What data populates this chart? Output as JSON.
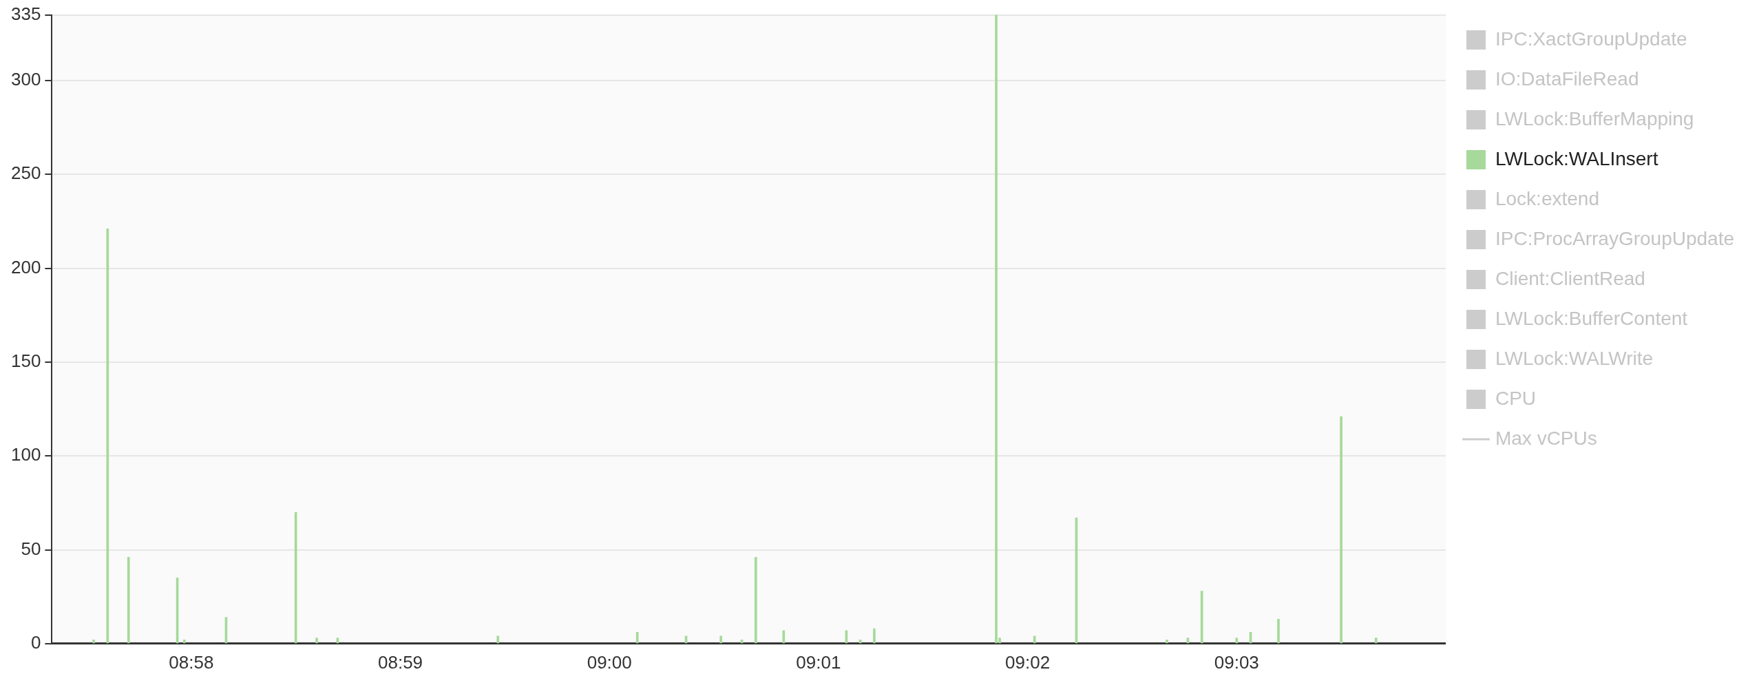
{
  "chart_data": {
    "type": "bar",
    "x": [
      8.958889,
      8.96,
      8.961667,
      8.965556,
      8.966111,
      8.969444,
      8.975,
      8.976667,
      8.978333,
      8.991111,
      9.002222,
      9.006111,
      9.008889,
      9.010556,
      9.011667,
      9.013889,
      9.018889,
      9.02,
      9.021111,
      9.030833,
      9.031111,
      9.033889,
      9.037222,
      9.044444,
      9.046111,
      9.047222,
      9.05,
      9.051111,
      9.053333,
      9.058333,
      9.061111
    ],
    "series": [
      {
        "name": "IPC:XactGroupUpdate",
        "color": "#cccccc",
        "values": [
          null,
          null,
          null,
          null,
          null,
          null,
          null,
          null,
          null,
          null,
          null,
          null,
          null,
          null,
          null,
          null,
          null,
          null,
          null,
          null,
          null,
          null,
          null,
          null,
          null,
          null,
          null,
          null,
          null,
          null,
          null
        ]
      },
      {
        "name": "IO:DataFileRead",
        "color": "#cccccc",
        "values": [
          null,
          null,
          null,
          null,
          null,
          null,
          null,
          null,
          null,
          null,
          null,
          null,
          null,
          null,
          null,
          null,
          null,
          null,
          null,
          null,
          null,
          null,
          null,
          null,
          null,
          null,
          null,
          null,
          null,
          null,
          null
        ]
      },
      {
        "name": "LWLock:BufferMapping",
        "color": "#cccccc",
        "values": [
          null,
          null,
          null,
          null,
          null,
          null,
          null,
          null,
          null,
          null,
          null,
          null,
          null,
          null,
          null,
          null,
          null,
          null,
          null,
          null,
          null,
          null,
          null,
          null,
          null,
          null,
          null,
          null,
          null,
          null,
          null
        ]
      },
      {
        "name": "LWLock:WALInsert",
        "color": "#a6d99a",
        "values": [
          2,
          221,
          46,
          35,
          2,
          14,
          70,
          3,
          3,
          4,
          6,
          4,
          4,
          2,
          46,
          7,
          7,
          2,
          8,
          335,
          3,
          4,
          67,
          2,
          3,
          28,
          3,
          6,
          13,
          121,
          3
        ]
      },
      {
        "name": "Lock:extend",
        "color": "#cccccc",
        "values": [
          null,
          null,
          null,
          null,
          null,
          null,
          null,
          null,
          null,
          null,
          null,
          null,
          null,
          null,
          null,
          null,
          null,
          null,
          null,
          null,
          null,
          null,
          null,
          null,
          null,
          null,
          null,
          null,
          null,
          null,
          null
        ]
      },
      {
        "name": "IPC:ProcArrayGroupUpdate",
        "color": "#cccccc",
        "values": [
          null,
          null,
          null,
          null,
          null,
          null,
          null,
          null,
          null,
          null,
          null,
          null,
          null,
          null,
          null,
          null,
          null,
          null,
          null,
          null,
          null,
          null,
          null,
          null,
          null,
          null,
          null,
          null,
          null,
          null,
          null
        ]
      },
      {
        "name": "Client:ClientRead",
        "color": "#cccccc",
        "values": [
          null,
          null,
          null,
          null,
          null,
          null,
          null,
          null,
          null,
          null,
          null,
          null,
          null,
          null,
          null,
          null,
          null,
          null,
          null,
          null,
          null,
          null,
          null,
          null,
          null,
          null,
          null,
          null,
          null,
          null,
          null
        ]
      },
      {
        "name": "LWLock:BufferContent",
        "color": "#cccccc",
        "values": [
          null,
          null,
          null,
          null,
          null,
          null,
          null,
          null,
          null,
          null,
          null,
          null,
          null,
          null,
          null,
          null,
          null,
          null,
          null,
          null,
          null,
          null,
          null,
          null,
          null,
          null,
          null,
          null,
          null,
          null,
          null
        ]
      },
      {
        "name": "LWLock:WALWrite",
        "color": "#cccccc",
        "values": [
          null,
          null,
          null,
          null,
          null,
          null,
          null,
          null,
          null,
          null,
          null,
          null,
          null,
          null,
          null,
          null,
          null,
          null,
          null,
          null,
          null,
          null,
          null,
          null,
          null,
          null,
          null,
          null,
          null,
          null,
          null
        ]
      },
      {
        "name": "CPU",
        "color": "#cccccc",
        "values": [
          null,
          null,
          null,
          null,
          null,
          null,
          null,
          null,
          null,
          null,
          null,
          null,
          null,
          null,
          null,
          null,
          null,
          null,
          null,
          null,
          null,
          null,
          null,
          null,
          null,
          null,
          null,
          null,
          null,
          null,
          null
        ]
      },
      {
        "name": "Max vCPUs",
        "type": "line",
        "color": "#cccccc",
        "values": [
          null,
          null,
          null,
          null,
          null,
          null,
          null,
          null,
          null,
          null,
          null,
          null,
          null,
          null,
          null,
          null,
          null,
          null,
          null,
          null,
          null,
          null,
          null,
          null,
          null,
          null,
          null,
          null,
          null,
          null,
          null
        ]
      }
    ],
    "xlim": [
      8.955556,
      9.066667
    ],
    "xticks": [
      {
        "value": 8.966667,
        "label": "08:58"
      },
      {
        "value": 8.983333,
        "label": "08:59"
      },
      {
        "value": 9,
        "label": "09:00"
      },
      {
        "value": 9.016667,
        "label": "09:01"
      },
      {
        "value": 9.033333,
        "label": "09:02"
      },
      {
        "value": 9.05,
        "label": "09:03"
      }
    ],
    "ylim": [
      0,
      335
    ],
    "yticks": [
      0,
      50,
      100,
      150,
      200,
      250,
      300,
      335
    ],
    "grid": "y",
    "legend": "right"
  }
}
